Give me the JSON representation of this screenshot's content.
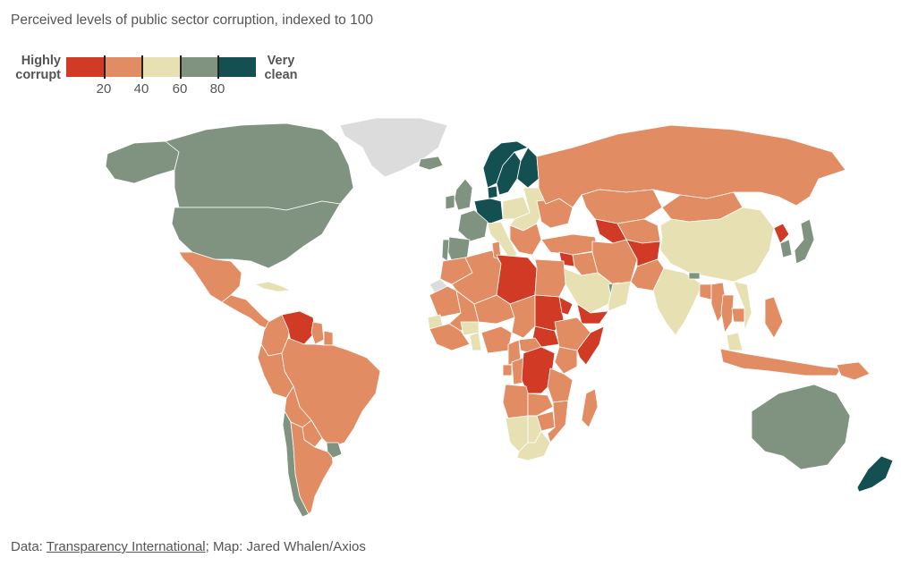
{
  "title": "Perceived levels of public sector corruption, indexed to 100",
  "legend": {
    "low_label_line1": "Highly",
    "low_label_line2": "corrupt",
    "high_label_line1": "Very",
    "high_label_line2": "clean",
    "ticks": [
      "20",
      "40",
      "60",
      "80"
    ],
    "colors": [
      "#d13a24",
      "#e28c63",
      "#e6e0b3",
      "#7f9380",
      "#144f52"
    ]
  },
  "map": {
    "no_data_color": "#dcdcdc",
    "regions": [
      {
        "name": "Canada",
        "bin": 3
      },
      {
        "name": "United States",
        "bin": 3
      },
      {
        "name": "Greenland",
        "bin": -1
      },
      {
        "name": "Alaska",
        "bin": 3
      },
      {
        "name": "Mexico",
        "bin": 1
      },
      {
        "name": "Central America",
        "bin": 1
      },
      {
        "name": "Cuba",
        "bin": 2
      },
      {
        "name": "Venezuela",
        "bin": 0
      },
      {
        "name": "Colombia",
        "bin": 1
      },
      {
        "name": "Guyana",
        "bin": 1
      },
      {
        "name": "Suriname",
        "bin": 1
      },
      {
        "name": "Brazil",
        "bin": 1
      },
      {
        "name": "Peru",
        "bin": 1
      },
      {
        "name": "Bolivia",
        "bin": 1
      },
      {
        "name": "Chile",
        "bin": 3
      },
      {
        "name": "Argentina",
        "bin": 1
      },
      {
        "name": "Uruguay",
        "bin": 3
      },
      {
        "name": "Paraguay",
        "bin": 1
      },
      {
        "name": "Iceland",
        "bin": 3
      },
      {
        "name": "Norway",
        "bin": 4
      },
      {
        "name": "Sweden",
        "bin": 4
      },
      {
        "name": "Finland",
        "bin": 4
      },
      {
        "name": "Denmark",
        "bin": 4
      },
      {
        "name": "United Kingdom",
        "bin": 3
      },
      {
        "name": "Ireland",
        "bin": 3
      },
      {
        "name": "Germany",
        "bin": 4
      },
      {
        "name": "France",
        "bin": 3
      },
      {
        "name": "Spain",
        "bin": 3
      },
      {
        "name": "Portugal",
        "bin": 3
      },
      {
        "name": "Italy",
        "bin": 2
      },
      {
        "name": "Poland",
        "bin": 2
      },
      {
        "name": "Eastern Europe",
        "bin": 2
      },
      {
        "name": "Balkans",
        "bin": 1
      },
      {
        "name": "Ukraine",
        "bin": 1
      },
      {
        "name": "Russia",
        "bin": 1
      },
      {
        "name": "Turkey",
        "bin": 1
      },
      {
        "name": "Kazakhstan",
        "bin": 1
      },
      {
        "name": "Central Asia",
        "bin": 1
      },
      {
        "name": "Mongolia",
        "bin": 1
      },
      {
        "name": "China",
        "bin": 2
      },
      {
        "name": "North Korea",
        "bin": 0
      },
      {
        "name": "South Korea",
        "bin": 3
      },
      {
        "name": "Japan",
        "bin": 3
      },
      {
        "name": "Syria",
        "bin": 0
      },
      {
        "name": "Iraq",
        "bin": 1
      },
      {
        "name": "Iran",
        "bin": 1
      },
      {
        "name": "Turkmenistan",
        "bin": 0
      },
      {
        "name": "Afghanistan",
        "bin": 0
      },
      {
        "name": "Pakistan",
        "bin": 1
      },
      {
        "name": "Saudi Arabia",
        "bin": 2
      },
      {
        "name": "Yemen",
        "bin": 0
      },
      {
        "name": "Oman",
        "bin": 2
      },
      {
        "name": "UAE",
        "bin": 3
      },
      {
        "name": "India",
        "bin": 2
      },
      {
        "name": "Bhutan",
        "bin": 3
      },
      {
        "name": "Bangladesh",
        "bin": 1
      },
      {
        "name": "Myanmar",
        "bin": 1
      },
      {
        "name": "Thailand",
        "bin": 1
      },
      {
        "name": "Vietnam",
        "bin": 2
      },
      {
        "name": "Cambodia",
        "bin": 1
      },
      {
        "name": "Malaysia",
        "bin": 2
      },
      {
        "name": "Philippines",
        "bin": 1
      },
      {
        "name": "Indonesia",
        "bin": 1
      },
      {
        "name": "Papua New Guinea",
        "bin": 1
      },
      {
        "name": "Australia",
        "bin": 3
      },
      {
        "name": "New Zealand",
        "bin": 4
      },
      {
        "name": "Morocco",
        "bin": 1
      },
      {
        "name": "Western Sahara",
        "bin": -1
      },
      {
        "name": "Algeria",
        "bin": 1
      },
      {
        "name": "Tunisia",
        "bin": 1
      },
      {
        "name": "Libya",
        "bin": 0
      },
      {
        "name": "Egypt",
        "bin": 1
      },
      {
        "name": "Mauritania",
        "bin": 1
      },
      {
        "name": "Mali",
        "bin": 1
      },
      {
        "name": "Niger",
        "bin": 1
      },
      {
        "name": "Chad",
        "bin": 1
      },
      {
        "name": "Sudan",
        "bin": 0
      },
      {
        "name": "South Sudan",
        "bin": 0
      },
      {
        "name": "Eritrea",
        "bin": 0
      },
      {
        "name": "Ethiopia",
        "bin": 1
      },
      {
        "name": "Somalia",
        "bin": 0
      },
      {
        "name": "Senegal",
        "bin": 2
      },
      {
        "name": "Burkina Faso",
        "bin": 2
      },
      {
        "name": "West Africa",
        "bin": 1
      },
      {
        "name": "Ghana",
        "bin": 2
      },
      {
        "name": "Nigeria",
        "bin": 1
      },
      {
        "name": "Cameroon",
        "bin": 1
      },
      {
        "name": "Central African Republic",
        "bin": 1
      },
      {
        "name": "Gabon",
        "bin": 1
      },
      {
        "name": "Congo",
        "bin": 1
      },
      {
        "name": "DR Congo",
        "bin": 0
      },
      {
        "name": "Kenya",
        "bin": 1
      },
      {
        "name": "Tanzania",
        "bin": 1
      },
      {
        "name": "Angola",
        "bin": 1
      },
      {
        "name": "Zambia",
        "bin": 1
      },
      {
        "name": "Zimbabwe",
        "bin": 1
      },
      {
        "name": "Mozambique",
        "bin": 1
      },
      {
        "name": "Namibia",
        "bin": 2
      },
      {
        "name": "Botswana",
        "bin": 2
      },
      {
        "name": "South Africa",
        "bin": 2
      },
      {
        "name": "Madagascar",
        "bin": 1
      }
    ]
  },
  "source": {
    "prefix": "Data: ",
    "link_text": "Transparency International",
    "suffix": "; Map: Jared Whalen/Axios"
  }
}
